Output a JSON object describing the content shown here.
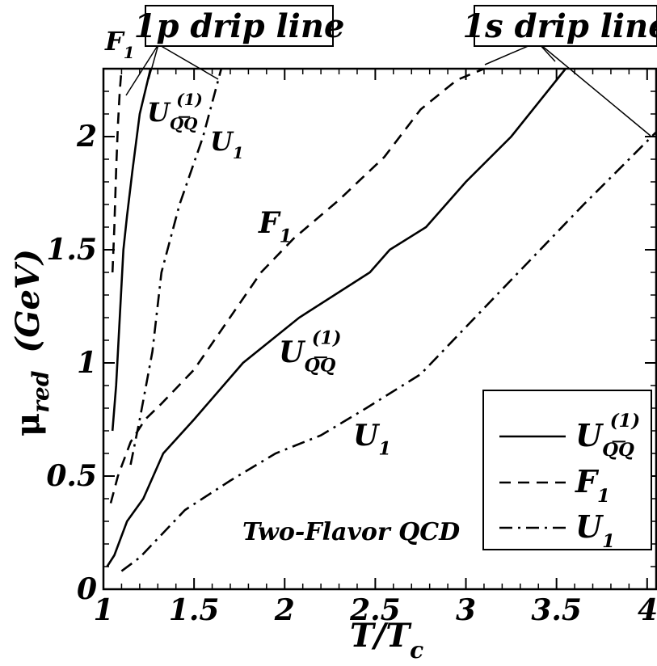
{
  "chart_data": {
    "type": "line",
    "title": "",
    "xlabel": "T/T",
    "xlabel_sub": "c",
    "ylabel": "μ",
    "ylabel_sub": "red",
    "ylabel_unit": "(GeV)",
    "xlim": [
      1,
      4.05
    ],
    "ylim": [
      0,
      2.3
    ],
    "x_ticks": [
      1,
      1.5,
      2,
      2.5,
      3,
      3.5,
      4
    ],
    "x_tick_labels": [
      "1",
      "1.5",
      "2",
      "2.5",
      "3",
      "3.5",
      "4"
    ],
    "y_ticks": [
      0,
      0.5,
      1,
      1.5,
      2
    ],
    "y_tick_labels": [
      "0",
      "0.5",
      "1",
      "1.5",
      "2"
    ],
    "grid": false,
    "legend_position": "bottom-right",
    "series": [
      {
        "name": "U_QQ̄^(1)",
        "group": "1s",
        "style": "solid",
        "x": [
          1.02,
          1.06,
          1.13,
          1.22,
          1.33,
          1.5,
          1.77,
          2.08,
          2.47,
          2.58,
          2.78,
          3.0,
          3.25,
          3.55
        ],
        "y": [
          0.1,
          0.15,
          0.3,
          0.4,
          0.6,
          0.75,
          1.0,
          1.2,
          1.4,
          1.5,
          1.6,
          1.8,
          2.0,
          2.3
        ]
      },
      {
        "name": "F_1",
        "group": "1s",
        "style": "dashed",
        "x": [
          1.04,
          1.08,
          1.15,
          1.23,
          1.32,
          1.5,
          1.87,
          2.05,
          2.3,
          2.55,
          2.75,
          2.95,
          3.1
        ],
        "y": [
          0.38,
          0.5,
          0.65,
          0.75,
          0.82,
          0.97,
          1.4,
          1.55,
          1.72,
          1.91,
          2.12,
          2.25,
          2.3
        ]
      },
      {
        "name": "U_1",
        "group": "1s",
        "style": "dashdot",
        "x": [
          1.1,
          1.2,
          1.45,
          1.7,
          1.95,
          2.2,
          2.45,
          2.75,
          3.05,
          3.35,
          3.65,
          3.9,
          4.05
        ],
        "y": [
          0.08,
          0.14,
          0.35,
          0.48,
          0.6,
          0.68,
          0.8,
          0.95,
          1.2,
          1.45,
          1.7,
          1.9,
          2.02
        ]
      },
      {
        "name": "U_QQ̄^(1)",
        "group": "1p",
        "style": "solid",
        "x": [
          1.05,
          1.07,
          1.09,
          1.11,
          1.13,
          1.16,
          1.2,
          1.26
        ],
        "y": [
          0.7,
          0.9,
          1.2,
          1.5,
          1.65,
          1.85,
          2.1,
          2.3
        ]
      },
      {
        "name": "F_1",
        "group": "1p",
        "style": "dashed",
        "x": [
          1.05,
          1.06,
          1.07,
          1.08,
          1.09,
          1.1
        ],
        "y": [
          1.4,
          1.6,
          1.85,
          2.05,
          2.2,
          2.3
        ]
      },
      {
        "name": "U_1",
        "group": "1p",
        "style": "dashdot",
        "x": [
          1.15,
          1.2,
          1.27,
          1.32,
          1.42,
          1.55,
          1.65
        ],
        "y": [
          0.55,
          0.75,
          1.05,
          1.4,
          1.7,
          2.0,
          2.3
        ]
      }
    ],
    "annotations": {
      "drip_1p": "1p drip line",
      "drip_1s": "1s drip line",
      "label_F1_1p": "F",
      "label_U1_1p": "U",
      "label_UQQ_1p": "U",
      "label_F1_1s": "F",
      "label_UQQ_1s": "U",
      "label_U1_1s": "U",
      "sub_1": "1",
      "sub_QQ": "QQ",
      "sup_1": "(1)",
      "flavor": "Two-Flavor QCD"
    },
    "legend": [
      {
        "label": "U",
        "sub": "QQ",
        "sup": "(1)",
        "style": "solid"
      },
      {
        "label": "F",
        "sub": "1",
        "sup": "",
        "style": "dashed"
      },
      {
        "label": "U",
        "sub": "1",
        "sup": "",
        "style": "dashdot"
      }
    ]
  }
}
